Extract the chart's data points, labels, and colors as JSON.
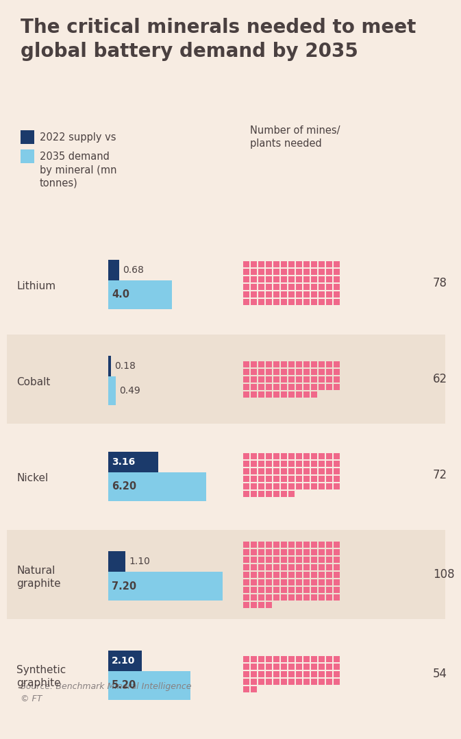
{
  "title": "The critical minerals needed to meet\nglobal battery demand by 2035",
  "bg_color": "#f7ece2",
  "row_bg_colors": [
    "#f7ece2",
    "#ede0d2",
    "#f7ece2",
    "#ede0d2",
    "#f7ece2"
  ],
  "minerals": [
    "Lithium",
    "Cobalt",
    "Nickel",
    "Natural\ngraphite",
    "Synthetic\ngraphite"
  ],
  "supply_2022": [
    0.68,
    0.18,
    3.16,
    1.1,
    2.1
  ],
  "demand_2035": [
    4.0,
    0.49,
    6.2,
    7.2,
    5.2
  ],
  "supply_labels": [
    "0.68",
    "0.18",
    "3.16",
    "1.10",
    "2.10"
  ],
  "demand_labels": [
    "4.0",
    "0.49",
    "6.20",
    "7.20",
    "5.20"
  ],
  "mines_needed": [
    78,
    62,
    72,
    108,
    54
  ],
  "dark_blue": "#1b3a6b",
  "light_blue": "#82cce8",
  "pink": "#f0688a",
  "text_color": "#4a4040",
  "source_text": "Source: Benchmark Mineral Intelligence\n© FT",
  "bar_max_value": 8.0,
  "grid_cols": 13,
  "supply_label_inside": [
    false,
    false,
    true,
    false,
    true
  ],
  "demand_label_inside": [
    true,
    false,
    true,
    true,
    true
  ]
}
